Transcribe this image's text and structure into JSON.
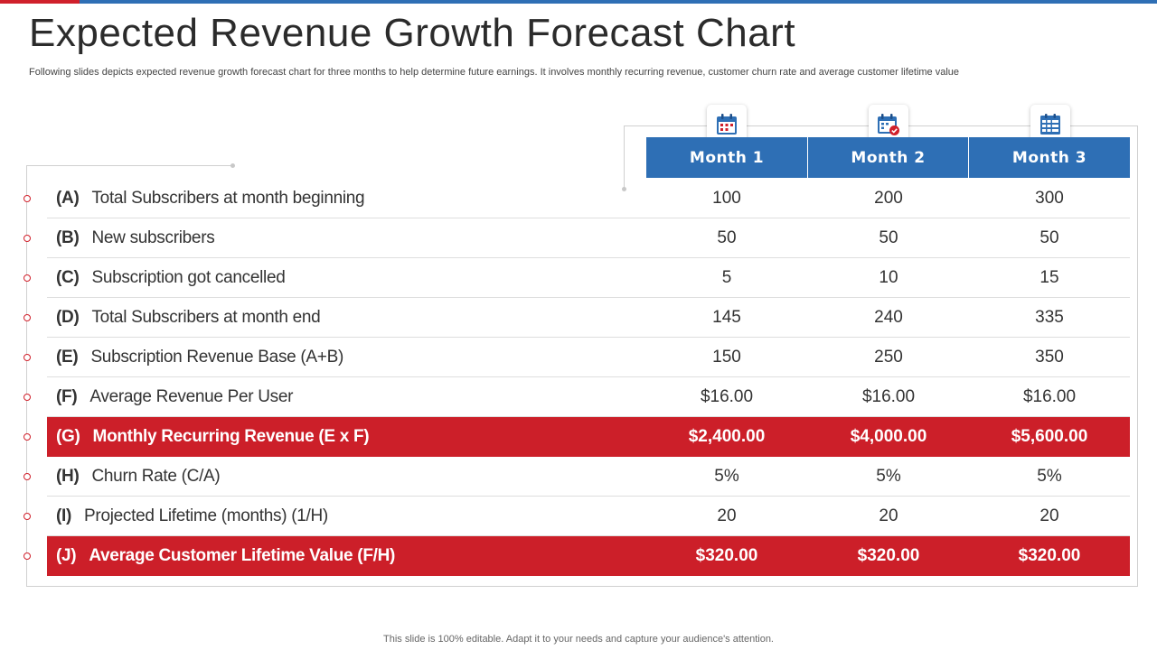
{
  "title": "Expected Revenue Growth Forecast Chart",
  "subtitle": "Following slides depicts expected revenue growth forecast chart for three months to help determine future earnings. It involves monthly recurring revenue, customer churn rate and average customer lifetime value",
  "footer": "This slide is 100% editable. Adapt it to your needs and capture your audience's attention.",
  "colors": {
    "accent_red": "#cc1f29",
    "header_blue": "#2e6fb5"
  },
  "columns": [
    {
      "label": "Month 1",
      "icon": "calendar-icon"
    },
    {
      "label": "Month 2",
      "icon": "calendar-check-icon"
    },
    {
      "label": "Month 3",
      "icon": "calendar-grid-icon"
    }
  ],
  "rows": [
    {
      "code": "(A)",
      "label": "Total Subscribers at month beginning",
      "values": [
        "100",
        "200",
        "300"
      ],
      "highlight": false
    },
    {
      "code": "(B)",
      "label": "New subscribers",
      "values": [
        "50",
        "50",
        "50"
      ],
      "highlight": false
    },
    {
      "code": "(C)",
      "label": "Subscription got cancelled",
      "values": [
        "5",
        "10",
        "15"
      ],
      "highlight": false
    },
    {
      "code": "(D)",
      "label": "Total Subscribers at month end",
      "values": [
        "145",
        "240",
        "335"
      ],
      "highlight": false
    },
    {
      "code": "(E)",
      "label": "Subscription Revenue Base (A+B)",
      "values": [
        "150",
        "250",
        "350"
      ],
      "highlight": false
    },
    {
      "code": "(F)",
      "label": "Average Revenue Per User",
      "values": [
        "$16.00",
        "$16.00",
        "$16.00"
      ],
      "highlight": false
    },
    {
      "code": "(G)",
      "label": "Monthly Recurring Revenue (E x F)",
      "values": [
        "$2,400.00",
        "$4,000.00",
        "$5,600.00"
      ],
      "highlight": true
    },
    {
      "code": "(H)",
      "label": "Churn Rate (C/A)",
      "values": [
        "5%",
        "5%",
        "5%"
      ],
      "highlight": false
    },
    {
      "code": "(I)",
      "label": "Projected Lifetime (months) (1/H)",
      "values": [
        "20",
        "20",
        "20"
      ],
      "highlight": false
    },
    {
      "code": "(J)",
      "label": "Average Customer Lifetime Value (F/H)",
      "values": [
        "$320.00",
        "$320.00",
        "$320.00"
      ],
      "highlight": true
    }
  ]
}
